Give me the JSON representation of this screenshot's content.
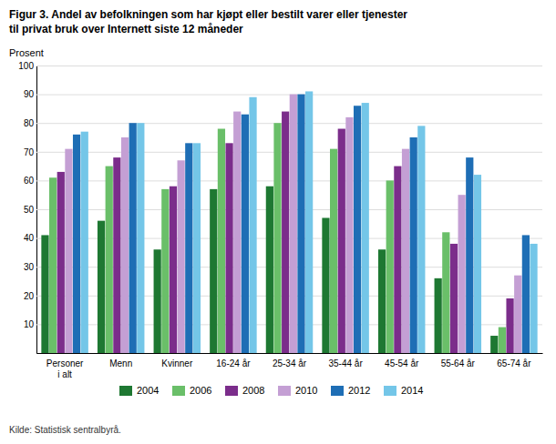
{
  "chart_data": {
    "type": "bar",
    "title": "Figur 3. Andel av befolkningen som har kjøpt eller bestilt varer eller tjenester",
    "subtitle": "til privat bruk over Internett siste 12 måneder",
    "y_label": "Prosent",
    "annotations": [
      "Kilde: Statistisk sentralbyrå."
    ],
    "categories": [
      "Personer\ni alt",
      "Menn",
      "Kvinner",
      "16-24 år",
      "25-34 år",
      "35-44 år",
      "45-54 år",
      "55-64 år",
      "65-74 år"
    ],
    "series": [
      {
        "name": "2004",
        "color": "#1e7832",
        "values": [
          41,
          46,
          36,
          57,
          58,
          47,
          36,
          26,
          6
        ]
      },
      {
        "name": "2006",
        "color": "#6abf69",
        "values": [
          61,
          65,
          57,
          78,
          80,
          71,
          60,
          42,
          9
        ]
      },
      {
        "name": "2008",
        "color": "#7b2d8b",
        "values": [
          63,
          68,
          58,
          73,
          84,
          78,
          65,
          38,
          19
        ]
      },
      {
        "name": "2010",
        "color": "#c49fd4",
        "values": [
          71,
          75,
          67,
          84,
          90,
          82,
          71,
          55,
          27
        ]
      },
      {
        "name": "2012",
        "color": "#1e6eb5",
        "values": [
          76,
          80,
          73,
          83,
          90,
          86,
          75,
          68,
          41
        ]
      },
      {
        "name": "2014",
        "color": "#74c6e8",
        "values": [
          77,
          80,
          73,
          89,
          91,
          87,
          79,
          62,
          38
        ]
      }
    ],
    "ylim": [
      0,
      100
    ],
    "yticks": [
      10,
      20,
      30,
      40,
      50,
      60,
      70,
      80,
      90,
      100
    ],
    "grid": true,
    "legend": "bottom"
  }
}
